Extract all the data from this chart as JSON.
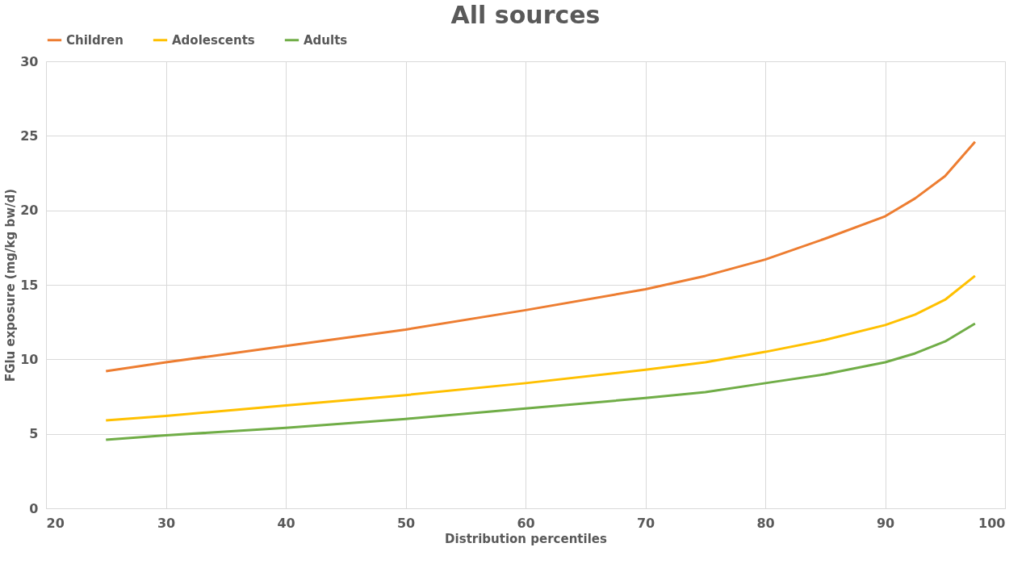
{
  "chart_data": {
    "type": "line",
    "title": "All sources",
    "xlabel": "Distribution percentiles",
    "ylabel": "FGlu exposure (mg/kg bw/d)",
    "x": [
      25,
      30,
      40,
      50,
      60,
      70,
      75,
      80,
      85,
      90,
      92.5,
      95,
      97.5
    ],
    "series": [
      {
        "name": "Children",
        "color": "#ed7d31",
        "values": [
          9.2,
          9.8,
          10.9,
          12.0,
          13.3,
          14.7,
          15.6,
          16.7,
          18.1,
          19.6,
          20.8,
          22.3,
          24.6
        ]
      },
      {
        "name": "Adolescents",
        "color": "#ffc000",
        "values": [
          5.9,
          6.2,
          6.9,
          7.6,
          8.4,
          9.3,
          9.8,
          10.5,
          11.3,
          12.3,
          13.0,
          14.0,
          15.6
        ]
      },
      {
        "name": "Adults",
        "color": "#70ad47",
        "values": [
          4.6,
          4.9,
          5.4,
          6.0,
          6.7,
          7.4,
          7.8,
          8.4,
          9.0,
          9.8,
          10.4,
          11.2,
          12.4
        ]
      }
    ],
    "xlim": [
      20,
      100
    ],
    "xticks": [
      20,
      30,
      40,
      50,
      60,
      70,
      80,
      90,
      100
    ],
    "ylim": [
      0,
      30
    ],
    "yticks": [
      0,
      5,
      10,
      15,
      20,
      25,
      30
    ],
    "grid": true,
    "legend": "top",
    "marker": "none",
    "line_style": "solid"
  }
}
